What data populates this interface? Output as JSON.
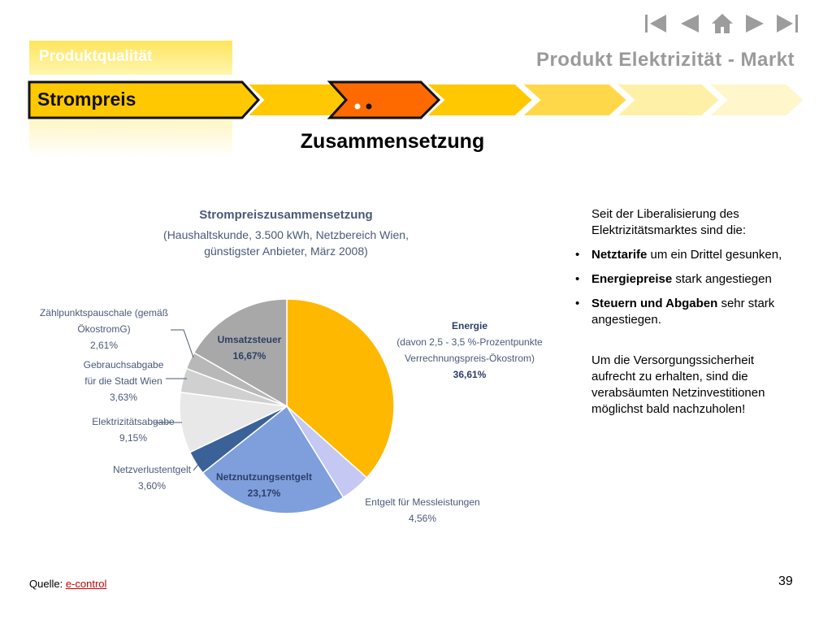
{
  "header": {
    "section_tab": "Produktqualität",
    "title": "Produkt Elektrizität - Markt",
    "current_step": "Strompreis"
  },
  "main_title": "Zusammensetzung",
  "nav_icons": [
    "first-page-icon",
    "previous-page-icon",
    "home-icon",
    "next-page-icon",
    "last-page-icon"
  ],
  "chart_data": {
    "type": "pie",
    "title": "Strompreiszusammensetzung",
    "subtitle_lines": [
      "(Haushaltskunde, 3.500 kWh, Netzbereich Wien,",
      "günstigster Anbieter, März 2008)"
    ],
    "unit": "%",
    "slices": [
      {
        "value": 36.61,
        "color": "#ffb800",
        "label_lines": [
          "Energie",
          "(davon 2,5 - 3,5 %-Prozentpunkte",
          "Verrechnungspreis-Ökostrom)",
          "36,61%"
        ]
      },
      {
        "value": 4.56,
        "color": "#c5c8f2",
        "label_lines": [
          "Entgelt für Messleistungen",
          "4,56%"
        ]
      },
      {
        "value": 23.17,
        "color": "#7f9fdc",
        "label_lines": [
          "Netznutzungsentgelt",
          "23,17%"
        ]
      },
      {
        "value": 3.6,
        "color": "#3a6298",
        "label_lines": [
          "Netzverlustentgelt",
          "3,60%"
        ]
      },
      {
        "value": 9.15,
        "color": "#e8e8e8",
        "label_lines": [
          "Elektrizitätsabgabe",
          "9,15%"
        ]
      },
      {
        "value": 3.63,
        "color": "#d0d0d0",
        "label_lines": [
          "Gebrauchsabgabe",
          "für die Stadt Wien",
          "3,63%"
        ]
      },
      {
        "value": 2.61,
        "color": "#b8b8b8",
        "label_lines": [
          "Zählpunktspauschale (gemäß",
          "ÖkostromG)",
          "2,61%"
        ]
      },
      {
        "value": 16.67,
        "color": "#a8a8a8",
        "label_lines": [
          "Umsatzsteuer",
          "16,67%"
        ]
      }
    ]
  },
  "text": {
    "intro": "Seit der Liberalisierung des Elektrizitätsmarktes sind die:",
    "bullets": [
      {
        "bold": "Netztarife",
        "rest": " um ein Drittel gesunken,"
      },
      {
        "bold": "Energiepreise",
        "rest": " stark angestiegen"
      },
      {
        "bold": "Steuern und Abgaben",
        "rest": " sehr stark angestiegen."
      }
    ],
    "outro": "Um die Versorgungssicherheit aufrecht zu erhalten, sind die verabsäumten Netzinvestitionen möglichst bald nachzuholen!"
  },
  "footer": {
    "source_label": "Quelle: ",
    "source_link": "e-control ",
    "page_number": "39"
  }
}
